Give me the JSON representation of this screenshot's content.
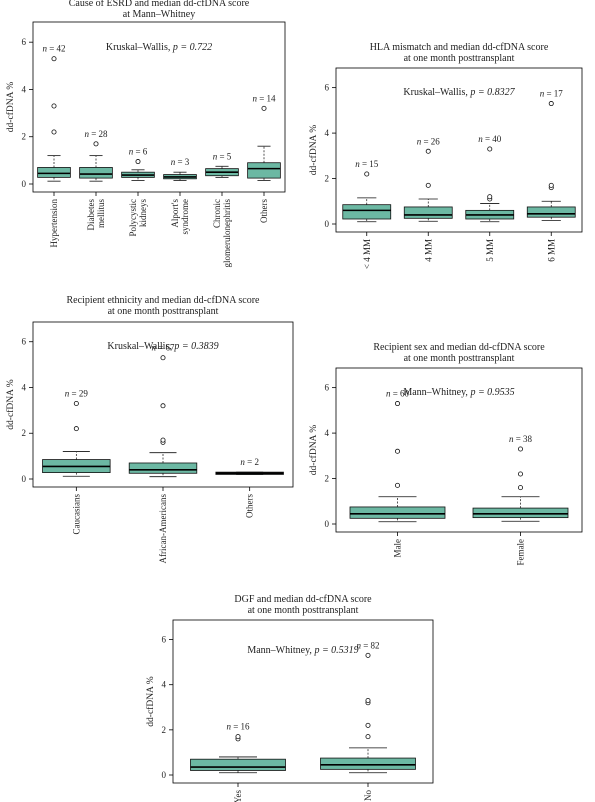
{
  "chart_data": [
    {
      "type": "box",
      "title_lines": [
        "Cause of ESRD and median dd-cfDNA score",
        "at Mann–Whitney"
      ],
      "test_label": "Kruskal–Wallis, ",
      "test_p": "p = 0.722",
      "ylabel": "dd-cfDNA %",
      "ylim": [
        0,
        6.6
      ],
      "yticks": [
        "0",
        "2",
        "4",
        "6"
      ],
      "categories": [
        "Hypertension",
        "Diabetes mellitus",
        "Polycystic kidneys",
        "Alport's syndrome",
        "Chronic glomerulonephritis",
        "Others"
      ],
      "n_labels": [
        "n = 42",
        "n = 28",
        "n = 6",
        "n = 3",
        "n = 5",
        "n = 14"
      ],
      "boxes": [
        {
          "q1": 0.28,
          "median": 0.45,
          "q3": 0.7,
          "lo": 0.12,
          "hi": 1.2,
          "outliers": [
            2.2,
            3.3,
            5.3
          ]
        },
        {
          "q1": 0.25,
          "median": 0.42,
          "q3": 0.7,
          "lo": 0.12,
          "hi": 1.2,
          "outliers": [
            1.7
          ]
        },
        {
          "q1": 0.28,
          "median": 0.38,
          "q3": 0.5,
          "lo": 0.15,
          "hi": 0.6,
          "outliers": [
            0.95
          ]
        },
        {
          "q1": 0.22,
          "median": 0.3,
          "q3": 0.4,
          "lo": 0.15,
          "hi": 0.5,
          "outliers": []
        },
        {
          "q1": 0.35,
          "median": 0.5,
          "q3": 0.65,
          "lo": 0.28,
          "hi": 0.75,
          "outliers": []
        },
        {
          "q1": 0.25,
          "median": 0.65,
          "q3": 0.9,
          "lo": 0.15,
          "hi": 1.6,
          "outliers": [
            3.2
          ]
        }
      ]
    },
    {
      "type": "box",
      "title_lines": [
        "HLA mismatch and median dd-cfDNA score",
        "at one month posttransplant"
      ],
      "test_label": "Kruskal–Wallis, ",
      "test_p": "p = 0.8327",
      "ylabel": "dd-cfDNA %",
      "ylim": [
        0,
        6.6
      ],
      "yticks": [
        "0",
        "2",
        "4",
        "6"
      ],
      "categories": [
        "< 4 MM",
        "4 MM",
        "5 MM",
        "6 MM"
      ],
      "n_labels": [
        "n = 15",
        "n = 26",
        "n = 40",
        "n = 17"
      ],
      "boxes": [
        {
          "q1": 0.22,
          "median": 0.6,
          "q3": 0.85,
          "lo": 0.1,
          "hi": 1.15,
          "outliers": [
            2.2
          ]
        },
        {
          "q1": 0.25,
          "median": 0.4,
          "q3": 0.75,
          "lo": 0.12,
          "hi": 1.1,
          "outliers": [
            1.7,
            3.2
          ]
        },
        {
          "q1": 0.22,
          "median": 0.4,
          "q3": 0.6,
          "lo": 0.1,
          "hi": 0.9,
          "outliers": [
            1.1,
            1.2,
            3.3
          ]
        },
        {
          "q1": 0.3,
          "median": 0.45,
          "q3": 0.75,
          "lo": 0.15,
          "hi": 1.0,
          "outliers": [
            1.6,
            1.7,
            5.3
          ]
        }
      ]
    },
    {
      "type": "box",
      "title_lines": [
        "Recipient ethnicity and median dd-cfDNA score",
        "at one month posttransplant"
      ],
      "test_label": "Kruskal–Wallis, ",
      "test_p": "p = 0.3839",
      "ylabel": "dd-cfDNA %",
      "ylim": [
        0,
        6.6
      ],
      "yticks": [
        "0",
        "2",
        "4",
        "6"
      ],
      "categories": [
        "Caucasians",
        "African-Americans",
        "Others"
      ],
      "n_labels": [
        "n = 29",
        "n = 67",
        "n = 2"
      ],
      "boxes": [
        {
          "q1": 0.28,
          "median": 0.55,
          "q3": 0.85,
          "lo": 0.12,
          "hi": 1.2,
          "outliers": [
            2.2,
            3.3
          ]
        },
        {
          "q1": 0.25,
          "median": 0.4,
          "q3": 0.7,
          "lo": 0.1,
          "hi": 1.15,
          "outliers": [
            1.6,
            1.7,
            3.2,
            5.3
          ]
        },
        {
          "q1": 0.2,
          "median": 0.25,
          "q3": 0.3,
          "lo": 0.2,
          "hi": 0.3,
          "outliers": []
        }
      ]
    },
    {
      "type": "box",
      "title_lines": [
        "Recipient sex and median dd-cfDNA score",
        "at one month posttransplant"
      ],
      "test_label": "Mann–Whitney, ",
      "test_p": "p = 0.9535",
      "ylabel": "dd-cfDNA %",
      "ylim": [
        0,
        6.6
      ],
      "yticks": [
        "0",
        "2",
        "4",
        "6"
      ],
      "categories": [
        "Male",
        "Female"
      ],
      "n_labels": [
        "n = 60",
        "n = 38"
      ],
      "boxes": [
        {
          "q1": 0.25,
          "median": 0.45,
          "q3": 0.75,
          "lo": 0.1,
          "hi": 1.2,
          "outliers": [
            1.7,
            3.2,
            5.3
          ]
        },
        {
          "q1": 0.28,
          "median": 0.45,
          "q3": 0.7,
          "lo": 0.12,
          "hi": 1.2,
          "outliers": [
            1.6,
            2.2,
            3.3
          ]
        }
      ]
    },
    {
      "type": "box",
      "title_lines": [
        "DGF and median dd-cfDNA score",
        "at one month posttransplant"
      ],
      "test_label": "Mann–Whitney, ",
      "test_p": "p = 0.5319",
      "ylabel": "dd-cfDNA %",
      "ylim": [
        0,
        6.6
      ],
      "yticks": [
        "0",
        "2",
        "4",
        "6"
      ],
      "categories": [
        "Yes",
        "No"
      ],
      "n_labels": [
        "n = 16",
        "n = 82"
      ],
      "boxes": [
        {
          "q1": 0.2,
          "median": 0.35,
          "q3": 0.7,
          "lo": 0.1,
          "hi": 0.8,
          "outliers": [
            1.6,
            1.7
          ]
        },
        {
          "q1": 0.25,
          "median": 0.45,
          "q3": 0.75,
          "lo": 0.1,
          "hi": 1.2,
          "outliers": [
            1.7,
            2.2,
            3.2,
            3.3,
            5.3
          ]
        }
      ]
    }
  ],
  "colors": {
    "box_fill": "#6cb8a3",
    "line": "#111111"
  }
}
